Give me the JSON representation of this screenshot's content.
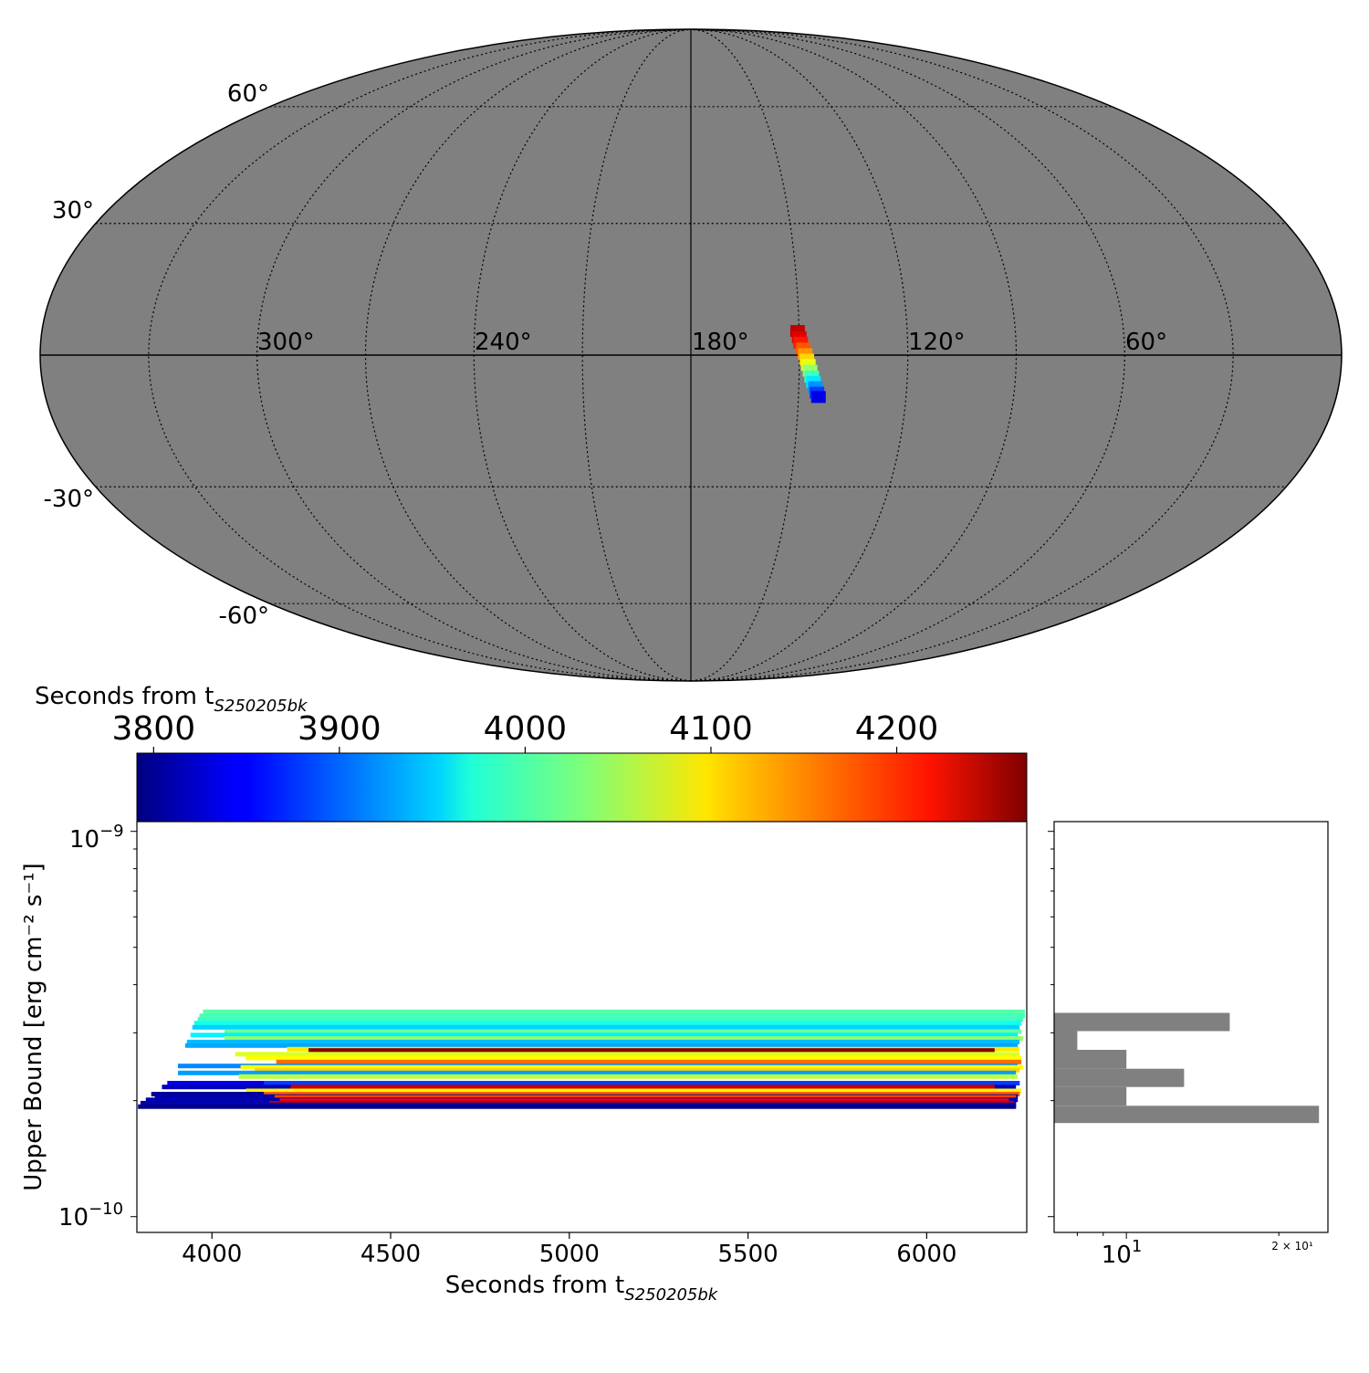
{
  "sky_map": {
    "projection": "mollweide",
    "background_color": "#808080",
    "colormap": "jet",
    "lat_ticks": [
      "60°",
      "30°",
      "-30°",
      "-60°"
    ],
    "lon_ticks": [
      "300°",
      "240°",
      "180°",
      "120°",
      "60°"
    ],
    "highlight_region": [
      {
        "lon": 150.4,
        "lat": 5.4,
        "t": 4240
      },
      {
        "lon": 150.0,
        "lat": 4.0,
        "t": 4225
      },
      {
        "lon": 149.6,
        "lat": 2.8,
        "t": 4200
      },
      {
        "lon": 149.0,
        "lat": 1.5,
        "t": 4170
      },
      {
        "lon": 148.4,
        "lat": 0.2,
        "t": 4140
      },
      {
        "lon": 147.9,
        "lat": -1.0,
        "t": 4110
      },
      {
        "lon": 147.5,
        "lat": -2.2,
        "t": 4080
      },
      {
        "lon": 147.0,
        "lat": -3.5,
        "t": 4040
      },
      {
        "lon": 146.5,
        "lat": -4.8,
        "t": 4000
      },
      {
        "lon": 146.0,
        "lat": -6.0,
        "t": 3960
      },
      {
        "lon": 145.4,
        "lat": -7.2,
        "t": 3920
      },
      {
        "lon": 144.9,
        "lat": -8.4,
        "t": 3880
      },
      {
        "lon": 144.4,
        "lat": -9.4,
        "t": 3840
      }
    ]
  },
  "colorbar": {
    "label_base": "Seconds from t",
    "label_sub": "S250205bk",
    "ticks": [
      "3800",
      "3900",
      "4000",
      "4100",
      "4200"
    ],
    "range": [
      3791,
      4270
    ],
    "colormap": "jet"
  },
  "main_plot": {
    "xlabel_base": "Seconds from t",
    "xlabel_sub": "S250205bk",
    "ylabel": "Upper Bound [erg cm⁻² s⁻¹]",
    "x_ticks": [
      "4000",
      "4500",
      "5000",
      "5500",
      "6000"
    ],
    "y_ticks": [
      {
        "base": "10",
        "exp": "−9"
      },
      {
        "base": "10",
        "exp": "−10"
      }
    ]
  },
  "hist_plot": {
    "bar_color": "#808080",
    "x_ticks": [
      {
        "base": "10",
        "exp": "1"
      }
    ],
    "x_tick_minor": "2 × 10¹"
  },
  "chart_data": [
    {
      "type": "scatter",
      "title": "",
      "description": "sky localization on Mollweide projection, pixels colored by seconds from t_S250205bk",
      "xlabel": "",
      "ylabel": "",
      "xlim": [
        360,
        0
      ],
      "ylim": [
        -90,
        90
      ],
      "grid": true
    },
    {
      "type": "bar",
      "orientation": "horizontal-segments",
      "title": "",
      "xlabel": "Seconds from t_S250205bk",
      "ylabel": "Upper Bound [erg cm^-2 s^-1]",
      "xlim": [
        3790,
        6280
      ],
      "ylim": [
        9.1e-11,
        1.06e-09
      ],
      "y_scale": "log",
      "color_by": "start time (seconds from t_S250205bk)",
      "color_range": [
        3791,
        4270
      ],
      "segments": [
        {
          "x0": 3975,
          "x1": 6275,
          "y": 3.4e-10,
          "c": 4010
        },
        {
          "x0": 3965,
          "x1": 6275,
          "y": 3.32e-10,
          "c": 4005
        },
        {
          "x0": 3960,
          "x1": 6270,
          "y": 3.25e-10,
          "c": 4000
        },
        {
          "x0": 3950,
          "x1": 6265,
          "y": 3.18e-10,
          "c": 3980
        },
        {
          "x0": 3945,
          "x1": 6260,
          "y": 3.1e-10,
          "c": 3950
        },
        {
          "x0": 4035,
          "x1": 6265,
          "y": 3.02e-10,
          "c": 4020
        },
        {
          "x0": 3940,
          "x1": 6255,
          "y": 2.96e-10,
          "c": 3965
        },
        {
          "x0": 4035,
          "x1": 6270,
          "y": 2.9e-10,
          "c": 4040
        },
        {
          "x0": 3930,
          "x1": 6260,
          "y": 2.84e-10,
          "c": 3940
        },
        {
          "x0": 3925,
          "x1": 6255,
          "y": 2.78e-10,
          "c": 3930
        },
        {
          "x0": 4210,
          "x1": 6260,
          "y": 2.72e-10,
          "c": 4100
        },
        {
          "x0": 4270,
          "x1": 6190,
          "y": 2.7e-10,
          "c": 4268
        },
        {
          "x0": 4065,
          "x1": 6260,
          "y": 2.64e-10,
          "c": 4075
        },
        {
          "x0": 4095,
          "x1": 6265,
          "y": 2.58e-10,
          "c": 4090
        },
        {
          "x0": 4180,
          "x1": 6265,
          "y": 2.52e-10,
          "c": 4160
        },
        {
          "x0": 3905,
          "x1": 6255,
          "y": 2.46e-10,
          "c": 3915
        },
        {
          "x0": 4080,
          "x1": 6270,
          "y": 2.44e-10,
          "c": 4090
        },
        {
          "x0": 4120,
          "x1": 6260,
          "y": 2.4e-10,
          "c": 4110
        },
        {
          "x0": 3905,
          "x1": 6250,
          "y": 2.36e-10,
          "c": 3925
        },
        {
          "x0": 4075,
          "x1": 6255,
          "y": 2.31e-10,
          "c": 4060
        },
        {
          "x0": 3875,
          "x1": 6260,
          "y": 2.22e-10,
          "c": 3840
        },
        {
          "x0": 4145,
          "x1": 6260,
          "y": 2.22e-10,
          "c": 3880
        },
        {
          "x0": 3860,
          "x1": 6250,
          "y": 2.17e-10,
          "c": 3820
        },
        {
          "x0": 4220,
          "x1": 6190,
          "y": 2.17e-10,
          "c": 4235
        },
        {
          "x0": 4095,
          "x1": 6265,
          "y": 2.12e-10,
          "c": 4095
        },
        {
          "x0": 3830,
          "x1": 6260,
          "y": 2.08e-10,
          "c": 3800
        },
        {
          "x0": 4145,
          "x1": 6260,
          "y": 2.08e-10,
          "c": 4165
        },
        {
          "x0": 3840,
          "x1": 6255,
          "y": 2.05e-10,
          "c": 3810
        },
        {
          "x0": 4175,
          "x1": 6250,
          "y": 2.04e-10,
          "c": 4180
        },
        {
          "x0": 3815,
          "x1": 6255,
          "y": 2.01e-10,
          "c": 3815
        },
        {
          "x0": 4190,
          "x1": 6230,
          "y": 2e-10,
          "c": 4210
        },
        {
          "x0": 3800,
          "x1": 6250,
          "y": 1.97e-10,
          "c": 3805
        },
        {
          "x0": 4160,
          "x1": 6245,
          "y": 1.97e-10,
          "c": 4240
        },
        {
          "x0": 3810,
          "x1": 6250,
          "y": 1.95e-10,
          "c": 3825
        },
        {
          "x0": 3793,
          "x1": 6250,
          "y": 1.93e-10,
          "c": 3795
        }
      ]
    },
    {
      "type": "bar",
      "orientation": "horizontal",
      "title": "",
      "x_scale": "log",
      "xlim": [
        7.2,
        25
      ],
      "ylim": [
        9.1e-11,
        1.06e-09
      ],
      "y_scale": "log",
      "bins": [
        {
          "y_low": 3.03e-10,
          "y_high": 3.38e-10,
          "count": 16
        },
        {
          "y_low": 2.71e-10,
          "y_high": 3.03e-10,
          "count": 8
        },
        {
          "y_low": 2.42e-10,
          "y_high": 2.71e-10,
          "count": 10
        },
        {
          "y_low": 2.17e-10,
          "y_high": 2.42e-10,
          "count": 13
        },
        {
          "y_low": 1.94e-10,
          "y_high": 2.17e-10,
          "count": 10
        },
        {
          "y_low": 1.75e-10,
          "y_high": 1.94e-10,
          "count": 24
        }
      ]
    }
  ]
}
